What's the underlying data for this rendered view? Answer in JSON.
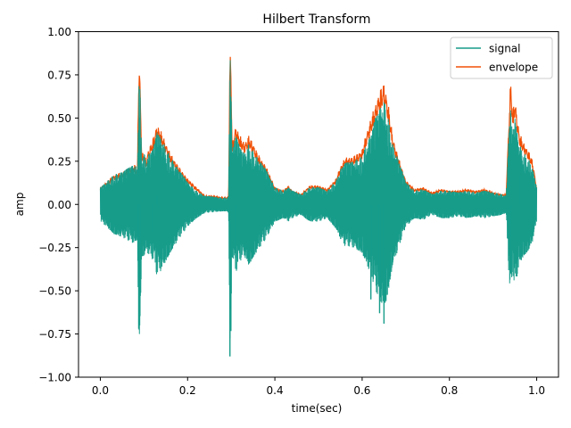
{
  "colors": {
    "signal": "#179c8a",
    "envelope": "#f05006",
    "axes": "#000000",
    "background": "#ffffff",
    "legend_border": "#cccccc"
  },
  "chart_data": {
    "type": "line",
    "title": "Hilbert Transform",
    "xlabel": "time(sec)",
    "ylabel": "amp",
    "xlim": [
      -0.05,
      1.05
    ],
    "ylim": [
      -1.0,
      1.0
    ],
    "grid": false,
    "legend_position": "top-right",
    "x_ticks": [
      0.0,
      0.2,
      0.4,
      0.6,
      0.8,
      1.0
    ],
    "x_tick_labels": [
      "0.0",
      "0.2",
      "0.4",
      "0.6",
      "0.8",
      "1.0"
    ],
    "y_ticks": [
      -1.0,
      -0.75,
      -0.5,
      -0.25,
      0.0,
      0.25,
      0.5,
      0.75,
      1.0
    ],
    "y_tick_labels": [
      "−1.00",
      "−0.75",
      "−0.50",
      "−0.25",
      "0.00",
      "0.25",
      "0.50",
      "0.75",
      "1.00"
    ],
    "series": [
      {
        "name": "signal",
        "color_key": "signal",
        "envelope_points": [
          [
            0.0,
            0.1
          ],
          [
            0.01,
            0.12
          ],
          [
            0.03,
            0.17
          ],
          [
            0.05,
            0.19
          ],
          [
            0.07,
            0.22
          ],
          [
            0.08,
            0.23
          ],
          [
            0.085,
            0.2
          ],
          [
            0.088,
            0.75
          ],
          [
            0.09,
            0.76
          ],
          [
            0.095,
            0.3
          ],
          [
            0.1,
            0.3
          ],
          [
            0.105,
            0.26
          ],
          [
            0.11,
            0.29
          ],
          [
            0.12,
            0.32
          ],
          [
            0.125,
            0.36
          ],
          [
            0.13,
            0.42
          ],
          [
            0.14,
            0.38
          ],
          [
            0.15,
            0.33
          ],
          [
            0.16,
            0.28
          ],
          [
            0.18,
            0.2
          ],
          [
            0.2,
            0.13
          ],
          [
            0.22,
            0.08
          ],
          [
            0.24,
            0.05
          ],
          [
            0.26,
            0.045
          ],
          [
            0.28,
            0.04
          ],
          [
            0.29,
            0.04
          ],
          [
            0.294,
            0.05
          ],
          [
            0.297,
            0.88
          ],
          [
            0.299,
            0.88
          ],
          [
            0.302,
            0.3
          ],
          [
            0.31,
            0.4
          ],
          [
            0.32,
            0.33
          ],
          [
            0.33,
            0.3
          ],
          [
            0.34,
            0.35
          ],
          [
            0.35,
            0.31
          ],
          [
            0.36,
            0.27
          ],
          [
            0.38,
            0.2
          ],
          [
            0.4,
            0.1
          ],
          [
            0.42,
            0.08
          ],
          [
            0.43,
            0.1
          ],
          [
            0.44,
            0.08
          ],
          [
            0.46,
            0.06
          ],
          [
            0.48,
            0.1
          ],
          [
            0.5,
            0.1
          ],
          [
            0.52,
            0.08
          ],
          [
            0.54,
            0.14
          ],
          [
            0.55,
            0.2
          ],
          [
            0.56,
            0.24
          ],
          [
            0.58,
            0.25
          ],
          [
            0.6,
            0.28
          ],
          [
            0.61,
            0.35
          ],
          [
            0.62,
            0.4
          ],
          [
            0.63,
            0.5
          ],
          [
            0.64,
            0.55
          ],
          [
            0.65,
            0.6
          ],
          [
            0.655,
            0.56
          ],
          [
            0.66,
            0.5
          ],
          [
            0.67,
            0.35
          ],
          [
            0.68,
            0.28
          ],
          [
            0.7,
            0.13
          ],
          [
            0.72,
            0.08
          ],
          [
            0.74,
            0.09
          ],
          [
            0.76,
            0.06
          ],
          [
            0.78,
            0.08
          ],
          [
            0.8,
            0.08
          ],
          [
            0.82,
            0.07
          ],
          [
            0.84,
            0.08
          ],
          [
            0.86,
            0.07
          ],
          [
            0.88,
            0.08
          ],
          [
            0.9,
            0.07
          ],
          [
            0.92,
            0.06
          ],
          [
            0.93,
            0.05
          ],
          [
            0.935,
            0.35
          ],
          [
            0.94,
            0.55
          ],
          [
            0.945,
            0.4
          ],
          [
            0.95,
            0.5
          ],
          [
            0.955,
            0.42
          ],
          [
            0.96,
            0.35
          ],
          [
            0.97,
            0.3
          ],
          [
            0.98,
            0.27
          ],
          [
            0.99,
            0.22
          ],
          [
            1.0,
            0.1
          ]
        ],
        "y_samples": [
          -0.72,
          -0.7,
          -0.15,
          0.05,
          -0.88,
          0.12,
          -0.31,
          -0.55,
          -0.63,
          -0.69,
          -0.4,
          0.01,
          0.17
        ]
      },
      {
        "name": "envelope",
        "color_key": "envelope",
        "points": [
          [
            0.0,
            0.1
          ],
          [
            0.01,
            0.12
          ],
          [
            0.03,
            0.17
          ],
          [
            0.05,
            0.19
          ],
          [
            0.07,
            0.22
          ],
          [
            0.08,
            0.23
          ],
          [
            0.085,
            0.2
          ],
          [
            0.088,
            0.8
          ],
          [
            0.09,
            0.81
          ],
          [
            0.095,
            0.3
          ],
          [
            0.1,
            0.3
          ],
          [
            0.105,
            0.26
          ],
          [
            0.11,
            0.32
          ],
          [
            0.12,
            0.38
          ],
          [
            0.125,
            0.42
          ],
          [
            0.13,
            0.47
          ],
          [
            0.14,
            0.42
          ],
          [
            0.15,
            0.36
          ],
          [
            0.16,
            0.3
          ],
          [
            0.18,
            0.22
          ],
          [
            0.2,
            0.15
          ],
          [
            0.22,
            0.1
          ],
          [
            0.24,
            0.05
          ],
          [
            0.26,
            0.05
          ],
          [
            0.28,
            0.04
          ],
          [
            0.29,
            0.04
          ],
          [
            0.294,
            0.05
          ],
          [
            0.297,
            0.88
          ],
          [
            0.299,
            0.88
          ],
          [
            0.302,
            0.35
          ],
          [
            0.31,
            0.46
          ],
          [
            0.32,
            0.4
          ],
          [
            0.33,
            0.36
          ],
          [
            0.34,
            0.4
          ],
          [
            0.35,
            0.36
          ],
          [
            0.36,
            0.3
          ],
          [
            0.38,
            0.22
          ],
          [
            0.4,
            0.1
          ],
          [
            0.42,
            0.08
          ],
          [
            0.43,
            0.11
          ],
          [
            0.44,
            0.08
          ],
          [
            0.46,
            0.06
          ],
          [
            0.48,
            0.11
          ],
          [
            0.5,
            0.11
          ],
          [
            0.52,
            0.09
          ],
          [
            0.54,
            0.15
          ],
          [
            0.55,
            0.22
          ],
          [
            0.56,
            0.27
          ],
          [
            0.58,
            0.28
          ],
          [
            0.6,
            0.32
          ],
          [
            0.61,
            0.42
          ],
          [
            0.62,
            0.5
          ],
          [
            0.63,
            0.58
          ],
          [
            0.64,
            0.66
          ],
          [
            0.65,
            0.71
          ],
          [
            0.655,
            0.65
          ],
          [
            0.66,
            0.58
          ],
          [
            0.67,
            0.4
          ],
          [
            0.68,
            0.3
          ],
          [
            0.7,
            0.14
          ],
          [
            0.72,
            0.09
          ],
          [
            0.74,
            0.1
          ],
          [
            0.76,
            0.07
          ],
          [
            0.78,
            0.09
          ],
          [
            0.8,
            0.08
          ],
          [
            0.82,
            0.08
          ],
          [
            0.84,
            0.09
          ],
          [
            0.86,
            0.08
          ],
          [
            0.88,
            0.09
          ],
          [
            0.9,
            0.07
          ],
          [
            0.92,
            0.06
          ],
          [
            0.93,
            0.06
          ],
          [
            0.935,
            0.4
          ],
          [
            0.94,
            0.73
          ],
          [
            0.945,
            0.55
          ],
          [
            0.95,
            0.62
          ],
          [
            0.955,
            0.52
          ],
          [
            0.96,
            0.42
          ],
          [
            0.97,
            0.36
          ],
          [
            0.98,
            0.32
          ],
          [
            0.99,
            0.26
          ],
          [
            1.0,
            0.1
          ]
        ]
      }
    ]
  }
}
